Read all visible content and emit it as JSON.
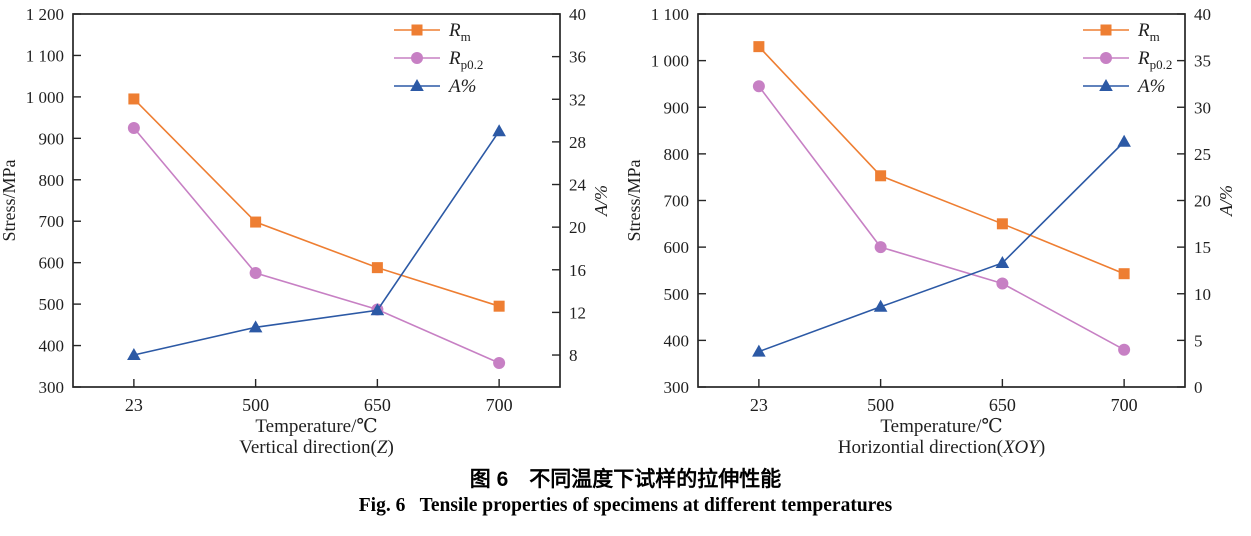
{
  "page": {
    "caption_zh": "图 6　不同温度下试样的拉伸性能",
    "caption_en": "Fig. 6   Tensile properties of specimens at different temperatures"
  },
  "colors": {
    "rm_orange": "#EE7E32",
    "rp02_purple": "#C780C4",
    "a_blue": "#2C59A5",
    "axis": "#262626"
  },
  "chart_data": [
    {
      "type": "line",
      "xlabel": "Temperature/℃",
      "direction": {
        "prefix": "Vertical direction(",
        "italic": "Z",
        "suffix": ")"
      },
      "ylabel_left": "Stress/MPa",
      "ylabel_right": "A/%",
      "categories": [
        "23",
        "500",
        "650",
        "700"
      ],
      "left_axis": {
        "min": 300,
        "max": 1200,
        "ticks": [
          300,
          400,
          500,
          600,
          700,
          800,
          900,
          1000,
          1100,
          1200
        ],
        "labels": [
          "300",
          "400",
          "500",
          "600",
          "700",
          "800",
          "900",
          "1 000",
          "1 100",
          "1 200"
        ]
      },
      "right_axis": {
        "min": 5,
        "max": 40,
        "ticks": [
          8,
          12,
          16,
          20,
          24,
          28,
          32,
          36,
          40
        ],
        "labels": [
          "8",
          "12",
          "16",
          "20",
          "24",
          "28",
          "32",
          "36",
          "40"
        ]
      },
      "series": [
        {
          "name": "Rm",
          "label": {
            "text": "Rm",
            "main": "R",
            "sub": "m"
          },
          "axis": "left",
          "marker": "square",
          "color": "#EE7E32",
          "values": [
            995,
            698,
            588,
            495
          ]
        },
        {
          "name": "Rp0.2",
          "label": {
            "text": "Rp0.2",
            "main": "R",
            "sub": "p0.2"
          },
          "axis": "left",
          "marker": "circle",
          "color": "#C780C4",
          "values": [
            925,
            575,
            487,
            358
          ]
        },
        {
          "name": "A%",
          "label": {
            "text": "A%",
            "main": "A%",
            "sub": ""
          },
          "axis": "right",
          "marker": "triangle",
          "color": "#2C59A5",
          "values": [
            8.0,
            10.6,
            12.2,
            29.0
          ]
        }
      ]
    },
    {
      "type": "line",
      "xlabel": "Temperature/℃",
      "direction": {
        "prefix": "Horizontial direction(",
        "italic": "XOY",
        "suffix": ")"
      },
      "ylabel_left": "Stress/MPa",
      "ylabel_right": "A/%",
      "categories": [
        "23",
        "500",
        "650",
        "700"
      ],
      "left_axis": {
        "min": 300,
        "max": 1100,
        "ticks": [
          300,
          400,
          500,
          600,
          700,
          800,
          900,
          1000,
          1100
        ],
        "labels": [
          "300",
          "400",
          "500",
          "600",
          "700",
          "800",
          "900",
          "1 000",
          "1 100"
        ]
      },
      "right_axis": {
        "min": 0,
        "max": 40,
        "ticks": [
          0,
          5,
          10,
          15,
          20,
          25,
          30,
          35,
          40
        ],
        "labels": [
          "0",
          "5",
          "10",
          "15",
          "20",
          "25",
          "30",
          "35",
          "40"
        ]
      },
      "series": [
        {
          "name": "Rm",
          "label": {
            "text": "Rm",
            "main": "R",
            "sub": "m"
          },
          "axis": "left",
          "marker": "square",
          "color": "#EE7E32",
          "values": [
            1030,
            753,
            650,
            543
          ]
        },
        {
          "name": "Rp0.2",
          "label": {
            "text": "Rp0.2",
            "main": "R",
            "sub": "p0.2"
          },
          "axis": "left",
          "marker": "circle",
          "color": "#C780C4",
          "values": [
            945,
            600,
            522,
            380
          ]
        },
        {
          "name": "A%",
          "label": {
            "text": "A%",
            "main": "A%",
            "sub": ""
          },
          "axis": "right",
          "marker": "triangle",
          "color": "#2C59A5",
          "values": [
            3.8,
            8.6,
            13.3,
            26.3
          ]
        }
      ]
    }
  ]
}
